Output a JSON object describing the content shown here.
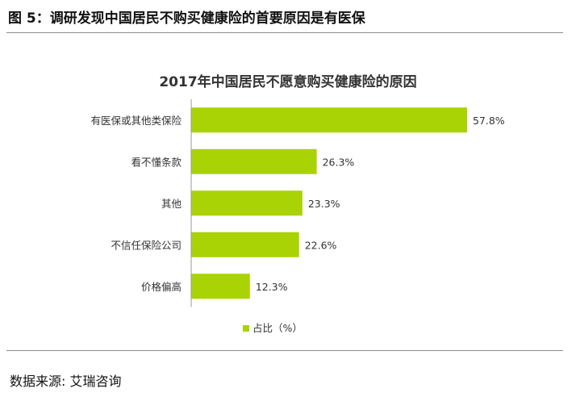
{
  "figure_title": "图 5：调研发现中国居民不购买健康险的首要原因是有医保",
  "source": "数据来源: 艾瑞咨询",
  "colors": {
    "bar": "#a9d304",
    "axis": "#9a9a9a",
    "text": "#333333"
  },
  "chart_data": {
    "type": "bar",
    "orientation": "horizontal",
    "title": "2017年中国居民不愿意购买健康险的原因",
    "categories": [
      "有医保或其他类保险",
      "看不懂条款",
      "其他",
      "不信任保险公司",
      "价格偏高"
    ],
    "series": [
      {
        "name": "占比（%）",
        "values": [
          57.8,
          26.3,
          23.3,
          22.6,
          12.3
        ]
      }
    ],
    "data_labels": [
      "57.8%",
      "26.3%",
      "23.3%",
      "22.6%",
      "12.3%"
    ],
    "xlim": [
      0,
      60
    ],
    "grid": false,
    "legend_position": "bottom"
  }
}
